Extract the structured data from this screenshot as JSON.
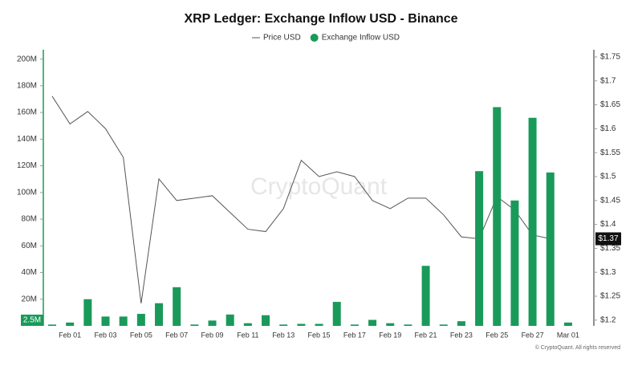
{
  "chart_data": {
    "type": "bar-line",
    "title": "XRP Ledger: Exchange Inflow USD - Binance",
    "watermark": "CryptoQuant",
    "footer": "© CryptoQuant. All rights reserved",
    "categories": [
      null,
      "Feb 01",
      null,
      "Feb 03",
      null,
      "Feb 05",
      null,
      "Feb 07",
      null,
      "Feb 09",
      null,
      "Feb 11",
      null,
      "Feb 13",
      null,
      "Feb 15",
      null,
      "Feb 17",
      null,
      "Feb 19",
      null,
      "Feb 21",
      null,
      "Feb 23",
      null,
      "Feb 25",
      null,
      "Feb 27",
      null,
      "Mar 01"
    ],
    "series": [
      {
        "name": "Price USD",
        "color": "#555555",
        "axis": "y2",
        "current_label": "$1.37",
        "values": [
          1.668,
          1.61,
          1.636,
          1.6,
          1.54,
          1.235,
          1.495,
          1.45,
          1.455,
          1.46,
          1.425,
          1.39,
          1.385,
          1.433,
          1.534,
          1.5,
          1.51,
          1.5,
          1.45,
          1.433,
          1.455,
          1.455,
          1.42,
          1.374,
          1.37,
          1.458,
          1.43,
          1.378,
          1.37,
          null
        ]
      },
      {
        "name": "Exchange Inflow USD",
        "color": "#1a9a5a",
        "axis": "y",
        "current_label": "2.5M",
        "values": [
          1000000,
          2500000,
          20000000,
          7000000,
          7000000,
          9000000,
          17000000,
          29000000,
          1000000,
          4000000,
          8500000,
          2000000,
          8000000,
          1000000,
          1500000,
          1500000,
          18000000,
          1000000,
          4500000,
          2000000,
          1000000,
          45000000,
          1000000,
          3500000,
          116000000,
          164000000,
          94000000,
          156000000,
          115000000,
          2500000
        ]
      }
    ],
    "ylim": [
      0,
      207000000
    ],
    "yticks": [
      {
        "value": 20000000,
        "label": "20M"
      },
      {
        "value": 40000000,
        "label": "40M"
      },
      {
        "value": 60000000,
        "label": "60M"
      },
      {
        "value": 80000000,
        "label": "80M"
      },
      {
        "value": 100000000,
        "label": "100M"
      },
      {
        "value": 120000000,
        "label": "120M"
      },
      {
        "value": 140000000,
        "label": "140M"
      },
      {
        "value": 160000000,
        "label": "160M"
      },
      {
        "value": 180000000,
        "label": "180M"
      },
      {
        "value": 200000000,
        "label": "200M"
      }
    ],
    "y2lim": [
      1.188,
      1.765
    ],
    "y2ticks": [
      {
        "value": 1.2,
        "label": "$1.2"
      },
      {
        "value": 1.25,
        "label": "$1.25"
      },
      {
        "value": 1.3,
        "label": "$1.3"
      },
      {
        "value": 1.35,
        "label": "$1.35"
      },
      {
        "value": 1.4,
        "label": "$1.4"
      },
      {
        "value": 1.45,
        "label": "$1.45"
      },
      {
        "value": 1.5,
        "label": "$1.5"
      },
      {
        "value": 1.55,
        "label": "$1.55"
      },
      {
        "value": 1.6,
        "label": "$1.6"
      },
      {
        "value": 1.65,
        "label": "$1.65"
      },
      {
        "value": 1.7,
        "label": "$1.7"
      },
      {
        "value": 1.75,
        "label": "$1.75"
      }
    ]
  }
}
